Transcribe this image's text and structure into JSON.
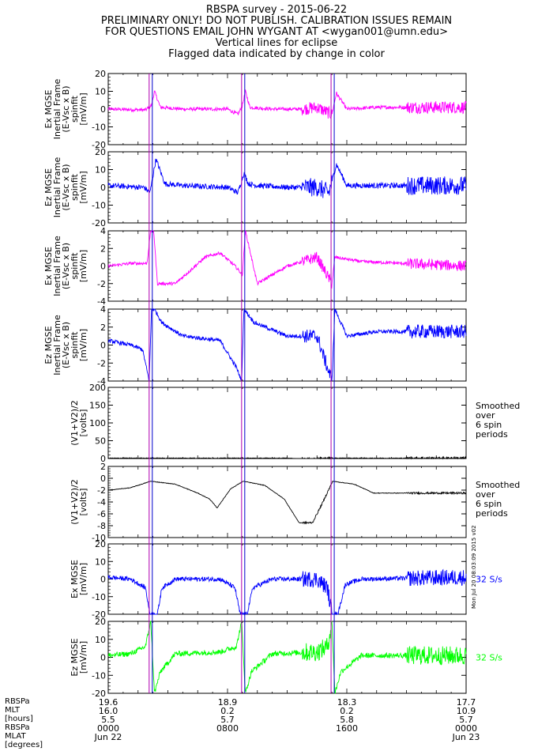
{
  "header": {
    "lines": [
      "RBSPA survey - 2015-06-22",
      "PRELIMINARY ONLY! DO NOT PUBLISH. CALIBRATION ISSUES REMAIN",
      "FOR QUESTIONS EMAIL JOHN WYGANT AT <wygan001@umn.edu>",
      "Vertical lines for eclipse",
      "Flagged data indicated by change in color"
    ]
  },
  "eclipse_lines_hours": [
    2.85,
    9.05,
    15.05
  ],
  "colors": {
    "magenta": "#ff00ff",
    "blue": "#0000ff",
    "black": "#000000",
    "green": "#00ff00",
    "eclipse": "#0000cc",
    "eclipse2": "#b000b0"
  },
  "chart_data": [
    {
      "type": "line",
      "ylabel": [
        "Ex MGSE",
        "Inertial Frame",
        "(E-Vsc x B)",
        "spinfit",
        "[mV/m]"
      ],
      "ylim": [
        -20,
        20
      ],
      "yticks": [
        -20,
        -10,
        0,
        10,
        20
      ],
      "color": "#ff00ff",
      "shape": "a",
      "noise": 1.0,
      "x": [
        0,
        2.5,
        2.9,
        3.1,
        3.5,
        5.0,
        8.0,
        8.7,
        9.0,
        9.2,
        9.5,
        11,
        13,
        14,
        15.0,
        15.3,
        16,
        18,
        24
      ],
      "y": [
        0,
        -0.5,
        2,
        10,
        1,
        0,
        0,
        -3,
        2,
        10,
        1,
        0,
        0,
        1,
        -3,
        9,
        0,
        1,
        1
      ]
    },
    {
      "type": "line",
      "ylabel": [
        "Ez MGSE",
        "Inertial Frame",
        "(E-Vsc x B)",
        "spinfit",
        "[mV/m]"
      ],
      "ylim": [
        -20,
        20
      ],
      "yticks": [
        -20,
        -10,
        0,
        10,
        20
      ],
      "color": "#0000ff",
      "shape": "b",
      "noise": 1.5,
      "x": [
        0,
        2.4,
        2.8,
        3.2,
        3.8,
        5.0,
        8.0,
        8.7,
        9.1,
        9.4,
        10,
        12,
        14,
        14.8,
        15.3,
        16,
        18,
        24
      ],
      "y": [
        1,
        0,
        -3,
        16,
        2,
        1,
        0,
        -3,
        8,
        2,
        1,
        0,
        0,
        -3,
        13,
        1,
        1,
        1
      ]
    },
    {
      "type": "line",
      "ylabel": [
        "Ex MGSE",
        "Inertial Frame",
        "(E-Vsc x B)",
        "spinfit",
        "[mV/m]"
      ],
      "ylim": [
        -4,
        4
      ],
      "yticks": [
        -4,
        -2,
        0,
        2,
        4
      ],
      "color": "#ff00ff",
      "shape": "c",
      "noise": 0.9,
      "x": [
        0,
        1.5,
        2.6,
        2.85,
        3.05,
        3.3,
        4.5,
        6.5,
        7.5,
        8.5,
        9.0,
        9.2,
        10,
        12,
        14,
        15.0,
        15.2,
        17,
        24
      ],
      "y": [
        0,
        0.3,
        0.3,
        4,
        4,
        -2,
        -2,
        1,
        1.5,
        0,
        -1,
        4,
        -2,
        0,
        1,
        -2,
        1,
        0.5,
        0
      ]
    },
    {
      "type": "line",
      "ylabel": [
        "Ez MGSE",
        "Inertial Frame",
        "(E-Vsc x B)",
        "spinfit",
        "[mV/m]"
      ],
      "ylim": [
        -4,
        4
      ],
      "yticks": [
        -4,
        -2,
        0,
        2,
        4
      ],
      "color": "#0000ff",
      "shape": "d",
      "noise": 1.1,
      "x": [
        0,
        1.5,
        2.3,
        2.75,
        2.9,
        3.1,
        3.6,
        5.0,
        7.5,
        8.6,
        8.95,
        9.1,
        9.8,
        12,
        14,
        14.6,
        15.0,
        15.2,
        16,
        18,
        24
      ],
      "y": [
        0.5,
        0,
        -0.5,
        -4,
        4,
        4,
        2.5,
        1,
        0.5,
        -2.5,
        -4,
        4,
        2.5,
        1,
        1,
        -2,
        -4,
        4,
        1,
        1.5,
        1.5
      ]
    },
    {
      "type": "line",
      "ylabel": [
        "(V1+V2)/2",
        "[volts]"
      ],
      "ylim": [
        0,
        200
      ],
      "yticks": [
        0,
        50,
        100,
        150,
        200
      ],
      "color": "#000000",
      "shape": "e",
      "noise": 0.2,
      "annotation": [
        "Smoothed",
        "over",
        "6 spin",
        "periods"
      ],
      "x": [
        0,
        6,
        12,
        13,
        15,
        24
      ],
      "y": [
        1,
        1,
        1,
        -2,
        1,
        1
      ]
    },
    {
      "type": "line",
      "ylabel": [
        "(V1+V2)/2",
        "[volts]"
      ],
      "ylim": [
        -10,
        2
      ],
      "yticks": [
        -10,
        -8,
        -6,
        -4,
        -2,
        0,
        2
      ],
      "color": "#000000",
      "shape": "f",
      "noise": 0.15,
      "annotation": [
        "Smoothed",
        "over",
        "6 spin",
        "periods"
      ],
      "x": [
        0,
        1.5,
        2.85,
        4.5,
        6.0,
        6.8,
        7.3,
        8.2,
        9.05,
        10.5,
        11.8,
        12.8,
        13.7,
        14.4,
        15.05,
        16.5,
        17.8,
        24
      ],
      "y": [
        -2,
        -1.6,
        -0.5,
        -1.0,
        -2.5,
        -3.5,
        -5.0,
        -1.8,
        -0.5,
        -1.2,
        -3.5,
        -7.5,
        -7.5,
        -4.0,
        -0.5,
        -1.0,
        -2.5,
        -2.5
      ]
    },
    {
      "type": "line",
      "ylabel": [
        "Ex MGSE",
        "[mV/m]"
      ],
      "ylim": [
        -20,
        20
      ],
      "yticks": [
        -20,
        -10,
        0,
        10,
        20
      ],
      "color": "#0000ff",
      "shape": "g",
      "noise": 1.3,
      "annotation": [
        "32 S/s"
      ],
      "annotation_color": "#0000ff",
      "x": [
        0,
        1.5,
        2.5,
        2.8,
        3.3,
        3.6,
        4.5,
        7.5,
        8.5,
        8.85,
        9.3,
        9.7,
        11,
        14,
        14.7,
        15.0,
        15.4,
        15.9,
        17,
        24
      ],
      "y": [
        1,
        0,
        -5,
        -20,
        -20,
        -5,
        0,
        0,
        -5,
        -20,
        -20,
        -5,
        0,
        0,
        -5,
        -20,
        -20,
        -3,
        0,
        1
      ]
    },
    {
      "type": "line",
      "ylabel": [
        "Ez MGSE",
        "[mV/m]"
      ],
      "ylim": [
        -20,
        20
      ],
      "yticks": [
        -20,
        -10,
        0,
        10,
        20
      ],
      "color": "#00ff00",
      "shape": "h",
      "noise": 1.5,
      "annotation": [
        "32 S/s"
      ],
      "annotation_color": "#00ff00",
      "x": [
        0,
        1.5,
        2.5,
        2.85,
        3.1,
        3.5,
        4.5,
        7.5,
        8.6,
        8.95,
        9.2,
        9.6,
        11,
        14,
        14.7,
        15.0,
        15.2,
        15.6,
        17,
        24
      ],
      "y": [
        1,
        2,
        6,
        20,
        -20,
        -8,
        2,
        3,
        6,
        20,
        -20,
        -8,
        2,
        3,
        6,
        20,
        -20,
        -8,
        1,
        1
      ]
    }
  ],
  "xaxis": {
    "tick_hours": [
      0,
      8,
      16,
      24
    ],
    "rows": [
      {
        "label": "RBSPa",
        "values": [
          "19.6",
          "18.9",
          "18.3",
          "17.7"
        ]
      },
      {
        "label": "MLT",
        "values": [
          "16.0",
          "0.2",
          "0.2",
          "10.9"
        ]
      },
      {
        "label": "[hours]",
        "values": [
          "5.5",
          "5.7",
          "5.8",
          "5.7"
        ]
      },
      {
        "label": "RBSPa",
        "values": [
          "0000",
          "0800",
          "1600",
          "0000"
        ]
      },
      {
        "label": "MLAT",
        "values": [
          "Jun 22",
          "",
          "",
          "Jun 23"
        ]
      },
      {
        "label": "[degrees]",
        "values": [
          "",
          "",
          "",
          ""
        ]
      }
    ]
  },
  "stamp": "Mon Jul 20 08:03:09 2015 v02"
}
